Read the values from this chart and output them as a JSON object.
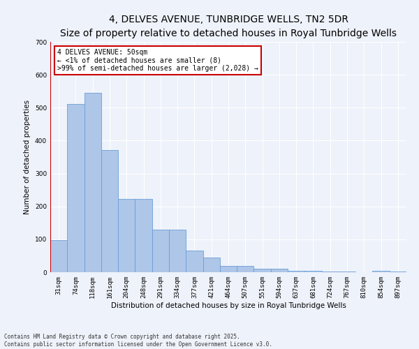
{
  "title": "4, DELVES AVENUE, TUNBRIDGE WELLS, TN2 5DR",
  "subtitle": "Size of property relative to detached houses in Royal Tunbridge Wells",
  "xlabel": "Distribution of detached houses by size in Royal Tunbridge Wells",
  "ylabel": "Number of detached properties",
  "categories": [
    "31sqm",
    "74sqm",
    "118sqm",
    "161sqm",
    "204sqm",
    "248sqm",
    "291sqm",
    "334sqm",
    "377sqm",
    "421sqm",
    "464sqm",
    "507sqm",
    "551sqm",
    "594sqm",
    "637sqm",
    "681sqm",
    "724sqm",
    "767sqm",
    "810sqm",
    "854sqm",
    "897sqm"
  ],
  "values": [
    97,
    512,
    545,
    372,
    222,
    222,
    130,
    130,
    65,
    45,
    20,
    20,
    11,
    11,
    4,
    4,
    2,
    2,
    0,
    5,
    2
  ],
  "bar_color": "#aec6e8",
  "bar_edge_color": "#6a9fd8",
  "highlight_line_color": "#cc0000",
  "annotation_text": "4 DELVES AVENUE: 50sqm\n← <1% of detached houses are smaller (8)\n>99% of semi-detached houses are larger (2,028) →",
  "annotation_box_color": "#ffffff",
  "annotation_box_edge_color": "#cc0000",
  "ylim": [
    0,
    700
  ],
  "yticks": [
    0,
    100,
    200,
    300,
    400,
    500,
    600,
    700
  ],
  "background_color": "#eef2fa",
  "plot_bg_color": "#eef2fa",
  "footer_text": "Contains HM Land Registry data © Crown copyright and database right 2025.\nContains public sector information licensed under the Open Government Licence v3.0.",
  "title_fontsize": 10,
  "subtitle_fontsize": 8.5,
  "label_fontsize": 7.5,
  "tick_fontsize": 6.5,
  "footer_fontsize": 5.5,
  "annotation_fontsize": 7
}
